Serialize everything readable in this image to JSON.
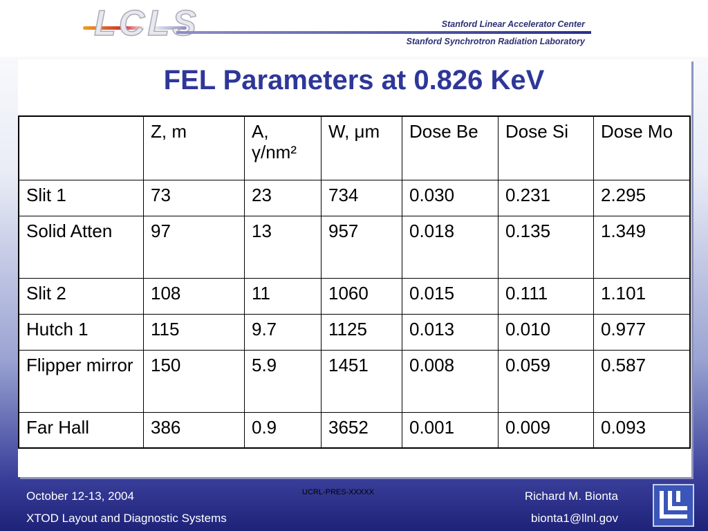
{
  "header": {
    "logo_text": "LCLS",
    "institution_1": "Stanford Linear Accelerator Center",
    "institution_2": "Stanford Synchrotron Radiation Laboratory"
  },
  "title": "FEL Parameters at 0.826 KeV",
  "table": {
    "headers": [
      "",
      "Z, m",
      "A, γ/nm²",
      "W, μm",
      "Dose Be",
      "Dose Si",
      "Dose Mo"
    ],
    "rows": [
      [
        "Slit 1",
        "73",
        "23",
        "734",
        "0.030",
        "0.231",
        "2.295"
      ],
      [
        "Solid Atten",
        "97",
        "13",
        "957",
        "0.018",
        "0.135",
        "1.349"
      ],
      [
        "Slit 2",
        "108",
        "11",
        "1060",
        "0.015",
        "0.111",
        "1.101"
      ],
      [
        "Hutch 1",
        "115",
        "9.7",
        "1125",
        "0.013",
        "0.010",
        "0.977"
      ],
      [
        "Flipper mirror",
        "150",
        "5.9",
        "1451",
        "0.008",
        "0.059",
        "0.587"
      ],
      [
        "Far Hall",
        "386",
        "0.9",
        "3652",
        "0.001",
        "0.009",
        "0.093"
      ]
    ]
  },
  "footer": {
    "date": "October 12-13, 2004",
    "subtitle": "XTOD Layout and Diagnostic Systems",
    "code": "UCRL-PRES-XXXXX",
    "author": "Richard M. Bionta",
    "email": "bionta1@llnl.gov"
  },
  "logos": {
    "llnl_logo": "llnl-logo-icon"
  },
  "colors": {
    "title": "#2e3798",
    "footer_text": "#ffffff",
    "background_bottom": "#1e2278"
  }
}
